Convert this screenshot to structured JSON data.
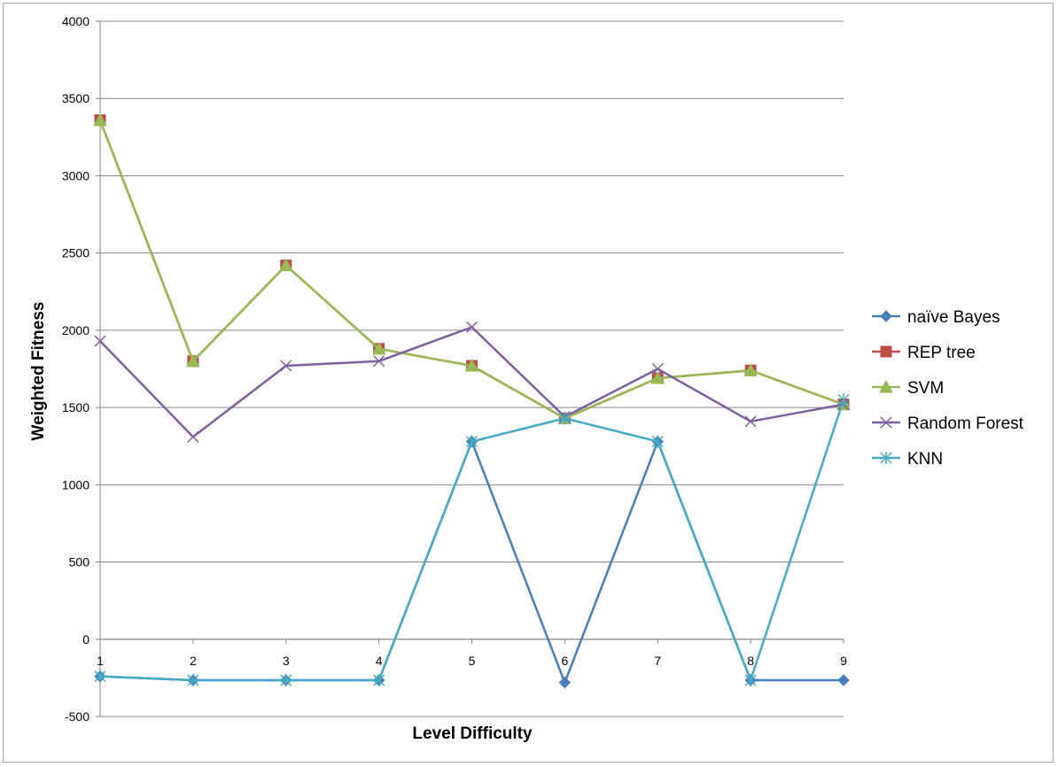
{
  "chart_data": {
    "type": "line",
    "title": "",
    "xlabel": "Level Difficulty",
    "ylabel": "Weighted Fitness",
    "x": [
      1,
      2,
      3,
      4,
      5,
      6,
      7,
      8,
      9
    ],
    "categories": [
      "1",
      "2",
      "3",
      "4",
      "5",
      "6",
      "7",
      "8",
      "9"
    ],
    "ylim": [
      -500,
      4000
    ],
    "yticks": [
      -500,
      0,
      500,
      1000,
      1500,
      2000,
      2500,
      3000,
      3500,
      4000
    ],
    "ytick_labels": [
      "-500",
      "0",
      "500",
      "1000",
      "1500",
      "2000",
      "2500",
      "3000",
      "3500",
      "4000"
    ],
    "grid": true,
    "legend_position": "right",
    "series": [
      {
        "name": "naïve Bayes",
        "color": "#4a7ebb",
        "marker": "diamond",
        "values": [
          -240,
          -265,
          -265,
          -265,
          1280,
          -280,
          1280,
          -265,
          -265
        ]
      },
      {
        "name": "REP tree",
        "color": "#be4b48",
        "marker": "square",
        "values": [
          3360,
          1800,
          2420,
          1880,
          1770,
          1430,
          1690,
          1740,
          1520
        ]
      },
      {
        "name": "SVM",
        "color": "#98b954",
        "marker": "triangle",
        "values": [
          3360,
          1800,
          2420,
          1880,
          1770,
          1430,
          1690,
          1740,
          1520
        ]
      },
      {
        "name": "Random Forest",
        "color": "#7d60a0",
        "marker": "x",
        "values": [
          1930,
          1310,
          1770,
          1800,
          2020,
          1440,
          1750,
          1410,
          1520
        ]
      },
      {
        "name": "KNN",
        "color": "#46aac5",
        "marker": "star",
        "values": [
          -240,
          -265,
          -265,
          -265,
          1280,
          1430,
          1280,
          -265,
          1550
        ]
      }
    ]
  }
}
